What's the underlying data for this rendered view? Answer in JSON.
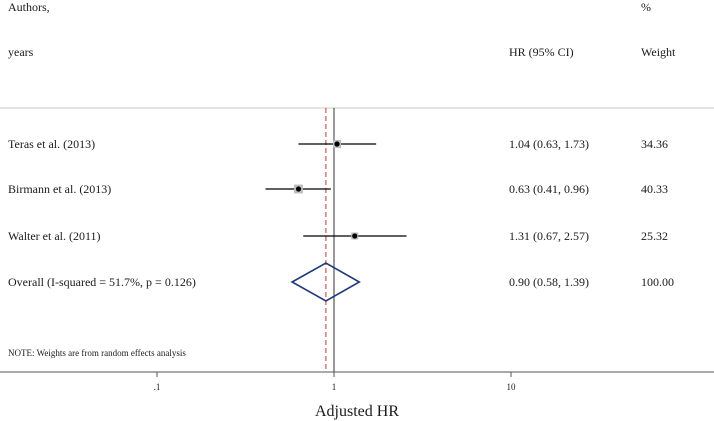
{
  "chart_data": {
    "type": "forest",
    "xscale": "log",
    "xlabel": "Adjusted HR",
    "xticks": [
      "0.1",
      "1",
      "10"
    ],
    "xtick_labels": [
      ".1",
      "1",
      "10"
    ],
    "xlim": [
      0.02,
      70
    ],
    "null_line": 1,
    "overall_line": 0.9,
    "header": {
      "col1_line1": "Authors,",
      "col1_line2": "years",
      "col2": "HR (95% CI)",
      "col3_line1": "%",
      "col3_line2": "Weight"
    },
    "studies": [
      {
        "label": "Teras et al. (2013)",
        "hr": 1.04,
        "lo": 0.63,
        "hi": 1.73,
        "ci_text": "1.04 (0.63, 1.73)",
        "weight": "34.36"
      },
      {
        "label": "Birmann et al. (2013)",
        "hr": 0.63,
        "lo": 0.41,
        "hi": 0.96,
        "ci_text": "0.63 (0.41, 0.96)",
        "weight": "40.33"
      },
      {
        "label": "Walter et al. (2011)",
        "hr": 1.31,
        "lo": 0.67,
        "hi": 2.57,
        "ci_text": "1.31 (0.67, 2.57)",
        "weight": "25.32"
      }
    ],
    "overall": {
      "label": "Overall  (I-squared = 51.7%, p = 0.126)",
      "hr": 0.9,
      "lo": 0.58,
      "hi": 1.39,
      "ci_text": "0.90 (0.58, 1.39)",
      "weight": "100.00"
    },
    "note": "NOTE: Weights are from random effects analysis",
    "colors": {
      "null_line": "#333333",
      "overall_line": "#c0392b",
      "diamond": "#1f3a7a",
      "ci": "#000000",
      "marker": "#000000",
      "marker_box": "#bdbdbd",
      "rule": "#c8c8c8"
    }
  }
}
